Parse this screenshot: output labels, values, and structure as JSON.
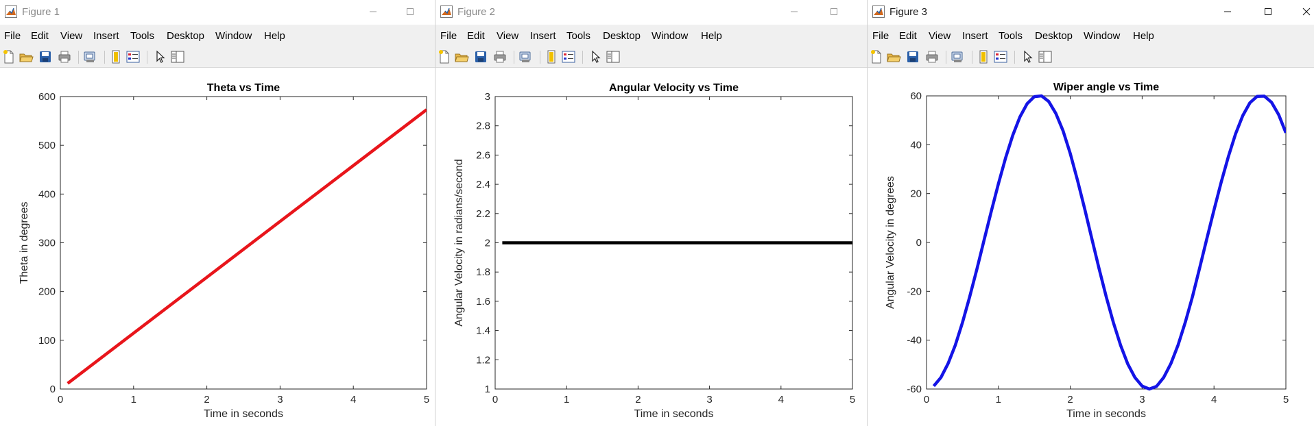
{
  "menu": [
    "File",
    "Edit",
    "View",
    "Insert",
    "Tools",
    "Desktop",
    "Window",
    "Help"
  ],
  "icons": [
    "new-file-icon",
    "open-folder-icon",
    "save-icon",
    "print-icon",
    "print-preview-icon",
    "link-plot-icon",
    "insert-legend-icon",
    "edit-plot-arrow-icon",
    "property-inspector-icon"
  ],
  "windows": [
    {
      "title": "Figure 1",
      "controls": [
        "minimize",
        "maximize"
      ],
      "chart_data": {
        "type": "line",
        "title": "Theta vs Time",
        "xlabel": "Time in seconds",
        "ylabel": "Theta in degrees",
        "xlim": [
          0,
          5
        ],
        "ylim": [
          0,
          600
        ],
        "xticks": [
          "0",
          "1",
          "2",
          "3",
          "4",
          "5"
        ],
        "yticks": [
          "0",
          "100",
          "200",
          "300",
          "400",
          "500",
          "600"
        ],
        "grid": false,
        "series": [
          {
            "color": "#e8151b",
            "x": [
              0.1,
              5
            ],
            "y": [
              11.5,
              573
            ]
          }
        ]
      }
    },
    {
      "title": "Figure 2",
      "controls": [
        "minimize",
        "maximize"
      ],
      "chart_data": {
        "type": "line",
        "title": "Angular Velocity vs Time",
        "xlabel": "Time in seconds",
        "ylabel": "Angular Velocity in radians/second",
        "xlim": [
          0,
          5
        ],
        "ylim": [
          1,
          3
        ],
        "xticks": [
          "0",
          "1",
          "2",
          "3",
          "4",
          "5"
        ],
        "yticks": [
          "1",
          "1.2",
          "1.4",
          "1.6",
          "1.8",
          "2",
          "2.2",
          "2.4",
          "2.6",
          "2.8",
          "3"
        ],
        "grid": false,
        "series": [
          {
            "color": "#000000",
            "x": [
              0.1,
              5
            ],
            "y": [
              2,
              2
            ]
          }
        ]
      }
    },
    {
      "title": "Figure 3",
      "controls": [
        "minimize",
        "maximize",
        "close"
      ],
      "chart_data": {
        "type": "line",
        "title": "Wiper angle vs Time",
        "xlabel": "Time in seconds",
        "ylabel": "Angular Velocity in degrees",
        "xlim": [
          0,
          5
        ],
        "ylim": [
          -60,
          60
        ],
        "xticks": [
          "0",
          "1",
          "2",
          "3",
          "4",
          "5"
        ],
        "yticks": [
          "-60",
          "-40",
          "-20",
          "0",
          "20",
          "40",
          "60"
        ],
        "grid": false,
        "series": [
          {
            "color": "#1414e6",
            "x": [
              0.1,
              0.2,
              0.3,
              0.4,
              0.5,
              0.6,
              0.7,
              0.8,
              0.9,
              1.0,
              1.1,
              1.2,
              1.3,
              1.4,
              1.5,
              1.6,
              1.7,
              1.8,
              1.9,
              2.0,
              2.1,
              2.2,
              2.3,
              2.4,
              2.5,
              2.6,
              2.7,
              2.8,
              2.9,
              3.0,
              3.1,
              3.2,
              3.3,
              3.4,
              3.5,
              3.6,
              3.7,
              3.8,
              3.9,
              4.0,
              4.1,
              4.2,
              4.3,
              4.4,
              4.5,
              4.6,
              4.7,
              4.8,
              4.9,
              5.0
            ],
            "y": [
              -58.8,
              -55.3,
              -49.6,
              -42.1,
              -32.8,
              -22.3,
              -11.0,
              0.8,
              12.6,
              24.0,
              34.6,
              43.9,
              51.4,
              56.8,
              59.7,
              60.0,
              57.7,
              52.8,
              45.7,
              36.4,
              25.5,
              13.8,
              1.6,
              -10.6,
              -22.2,
              -32.8,
              -42.1,
              -49.7,
              -55.3,
              -58.8,
              -60.0,
              -58.9,
              -55.3,
              -49.6,
              -42.0,
              -32.7,
              -22.2,
              -10.5,
              1.5,
              13.3,
              24.7,
              35.2,
              44.4,
              51.9,
              57.2,
              59.8,
              59.9,
              57.4,
              52.3,
              44.9
            ]
          }
        ]
      }
    }
  ]
}
